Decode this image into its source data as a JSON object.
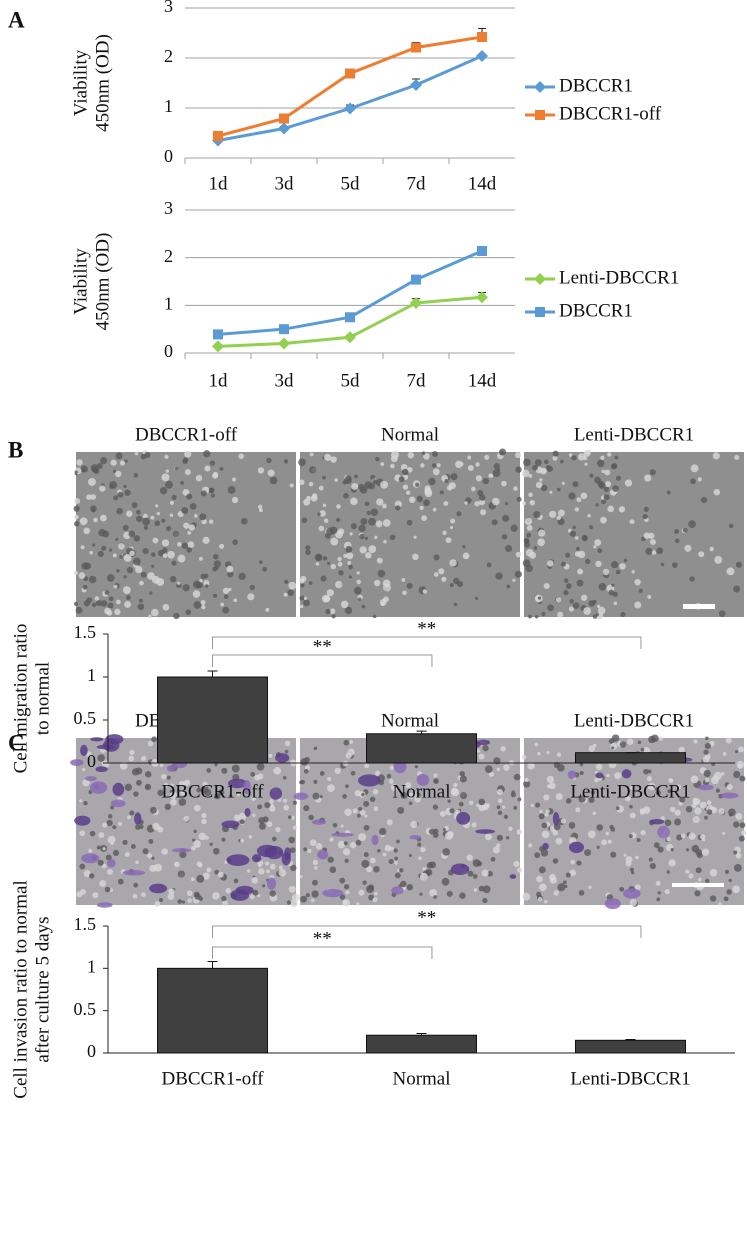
{
  "panels": [
    "A",
    "B",
    "C"
  ],
  "micrographs": [
    {
      "captions": [
        "DBCCR1-off",
        "Normal",
        "Lenti-DBCCR1"
      ]
    },
    {
      "captions": [
        "DBCCR1-off",
        "Normal",
        "Lenti-DBCCR1"
      ]
    }
  ],
  "chart_data": [
    {
      "type": "line",
      "ylabel": [
        "Viability",
        "450nm (OD)"
      ],
      "categories": [
        "1d",
        "3d",
        "5d",
        "7d",
        "14d"
      ],
      "series": [
        {
          "name": "DBCCR1",
          "color": "#5b9bd5",
          "marker": "diamond",
          "values": [
            0.35,
            0.59,
            0.99,
            1.46,
            2.04
          ],
          "errors": [
            0.02,
            0.04,
            0.07,
            0.12,
            0.03
          ]
        },
        {
          "name": "DBCCR1-off",
          "color": "#ed7d31",
          "marker": "square",
          "values": [
            0.44,
            0.79,
            1.69,
            2.21,
            2.42
          ],
          "errors": [
            0.04,
            0.04,
            0.04,
            0.1,
            0.17
          ]
        }
      ],
      "ylim": [
        0,
        3
      ],
      "yticks": [
        0,
        1,
        2,
        3
      ],
      "grid": true,
      "legend": "right"
    },
    {
      "type": "line",
      "ylabel": [
        "Viability",
        "450nm (OD)"
      ],
      "categories": [
        "1d",
        "3d",
        "5d",
        "7d",
        "14d"
      ],
      "series": [
        {
          "name": "Lenti-DBCCR1",
          "color": "#92d050",
          "marker": "diamond",
          "values": [
            0.14,
            0.2,
            0.33,
            1.05,
            1.17
          ],
          "errors": [
            0.03,
            0.02,
            0.04,
            0.09,
            0.1
          ]
        },
        {
          "name": "DBCCR1",
          "color": "#5b9bd5",
          "marker": "square",
          "values": [
            0.39,
            0.5,
            0.75,
            1.54,
            2.14
          ],
          "errors": [
            0.03,
            0.03,
            0.03,
            0.05,
            0.04
          ]
        }
      ],
      "ylim": [
        0,
        3
      ],
      "yticks": [
        0,
        1,
        2,
        3
      ],
      "grid": true,
      "legend": "right"
    },
    {
      "type": "bar",
      "ylabel": [
        "Cell migration ratio",
        "to normal"
      ],
      "categories": [
        "DBCCR1-off",
        "Normal",
        "Lenti-DBCCR1"
      ],
      "values": [
        1.0,
        0.34,
        0.12
      ],
      "errors": [
        0.07,
        0.03,
        0
      ],
      "color": "#404040",
      "ylim": [
        0,
        1.5
      ],
      "yticks": [
        0,
        0.5,
        1,
        1.5
      ],
      "annotations": [
        "**",
        "**"
      ]
    },
    {
      "type": "bar",
      "ylabel": [
        "Cell invasion ratio to normal",
        "after culture 5 days"
      ],
      "categories": [
        "DBCCR1-off",
        "Normal",
        "Lenti-DBCCR1"
      ],
      "values": [
        1.0,
        0.21,
        0.15
      ],
      "errors": [
        0.08,
        0.02,
        0.01
      ],
      "color": "#404040",
      "ylim": [
        0,
        1.5
      ],
      "yticks": [
        0,
        0.5,
        1,
        1.5
      ],
      "annotations": [
        "**",
        "**"
      ]
    }
  ]
}
